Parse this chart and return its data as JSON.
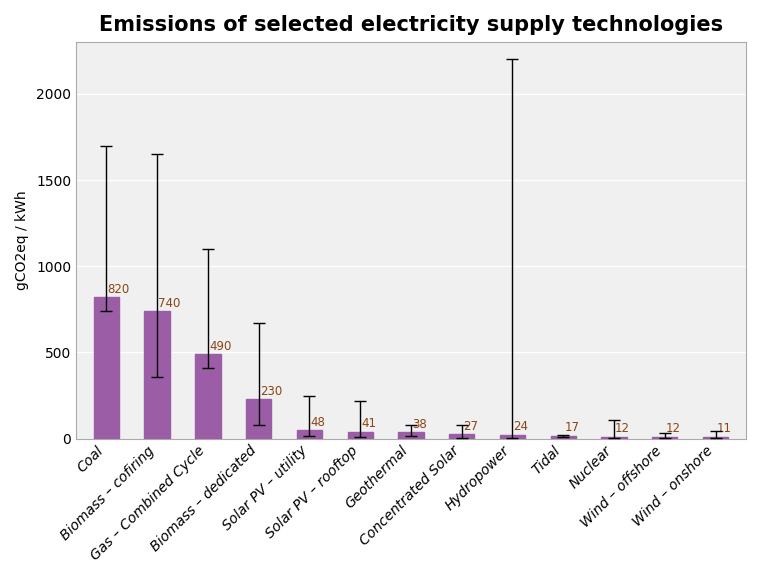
{
  "title": "Emissions of selected electricity supply technologies",
  "ylabel": "gCO2eq / kWh",
  "categories": [
    "Coal",
    "Biomass – cofiring",
    "Gas – Combined Cycle",
    "Biomass – dedicated",
    "Solar PV – utility",
    "Solar PV – rooftop",
    "Geothermal",
    "Concentrated Solar",
    "Hydropower",
    "Tidal",
    "Nuclear",
    "Wind – offshore",
    "Wind – onshore"
  ],
  "values": [
    820,
    740,
    490,
    230,
    48,
    41,
    38,
    27,
    24,
    17,
    12,
    12,
    11
  ],
  "whisker_top": [
    1700,
    1650,
    1100,
    670,
    250,
    218,
    79,
    78,
    2200,
    23,
    110,
    35,
    45
  ],
  "whisker_bottom": [
    740,
    360,
    410,
    80,
    16,
    7,
    15,
    6,
    4,
    8,
    3.7,
    6,
    3
  ],
  "bar_color": "#9B5DA5",
  "error_color": "#000000",
  "ylim": [
    0,
    2300
  ],
  "yticks": [
    0,
    500,
    1000,
    1500,
    2000
  ],
  "title_fontsize": 15,
  "label_fontsize": 10,
  "tick_fontsize": 10,
  "value_fontsize": 8.5,
  "value_color": "#8B4513",
  "bg_color": "#FFFFFF",
  "plot_bg_color": "#F0F0F0",
  "grid_color": "#FFFFFF",
  "spine_color": "#AAAAAA"
}
